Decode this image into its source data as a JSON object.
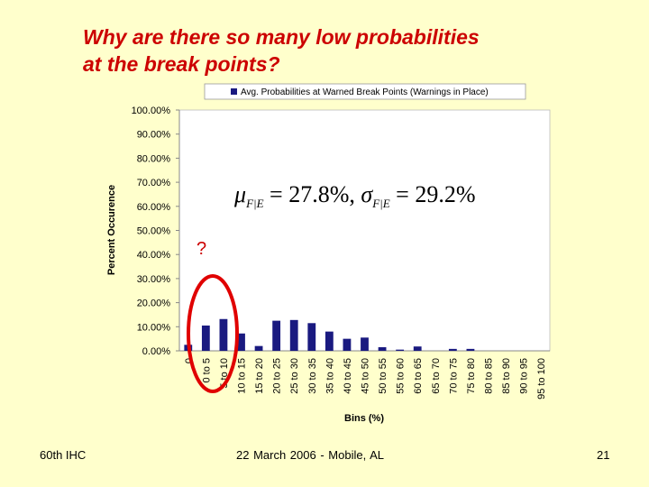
{
  "slide": {
    "title_line1": "Why are there so many low probabilities",
    "title_line2": "at the break points?",
    "footer_left": "60th IHC",
    "footer_center": "22 March 2006  -  Mobile, AL",
    "footer_right": "21"
  },
  "annotations": {
    "question_mark": "?",
    "circle_color": "#e00000"
  },
  "chart_data": {
    "type": "bar",
    "legend": "Avg. Probabilities at Warned Break Points (Warnings in Place)",
    "legend_position": "top",
    "xlabel": "Bins (%)",
    "ylabel": "Percent Occurence",
    "ylim": [
      0,
      100
    ],
    "yticks": [
      "0.00%",
      "10.00%",
      "20.00%",
      "30.00%",
      "40.00%",
      "50.00%",
      "60.00%",
      "70.00%",
      "80.00%",
      "90.00%",
      "100.00%"
    ],
    "categories": [
      "0",
      "0 to 5",
      "5 to 10",
      "10 to 15",
      "15 to 20",
      "20 to 25",
      "25 to 30",
      "30 to 35",
      "35 to 40",
      "40 to 45",
      "45 to 50",
      "50 to 55",
      "55 to 60",
      "60 to 65",
      "65 to 70",
      "70 to 75",
      "75 to 80",
      "80 to 85",
      "85 to 90",
      "90 to 95",
      "95 to 100"
    ],
    "values": [
      2.5,
      10.5,
      13.2,
      7.2,
      2.0,
      12.5,
      12.8,
      11.5,
      8.0,
      5.0,
      5.5,
      1.5,
      0.5,
      1.8,
      0,
      0.8,
      0.8,
      0,
      0,
      0,
      0
    ],
    "bar_color": "#1a1a80",
    "plot_background": "#ffffff",
    "gridlines": false,
    "formula_text": {
      "mu": "μ",
      "sigma": "σ",
      "subscript": "F|E",
      "mu_value": " = 27.8%, ",
      "sigma_value": " = 29.2%"
    }
  }
}
